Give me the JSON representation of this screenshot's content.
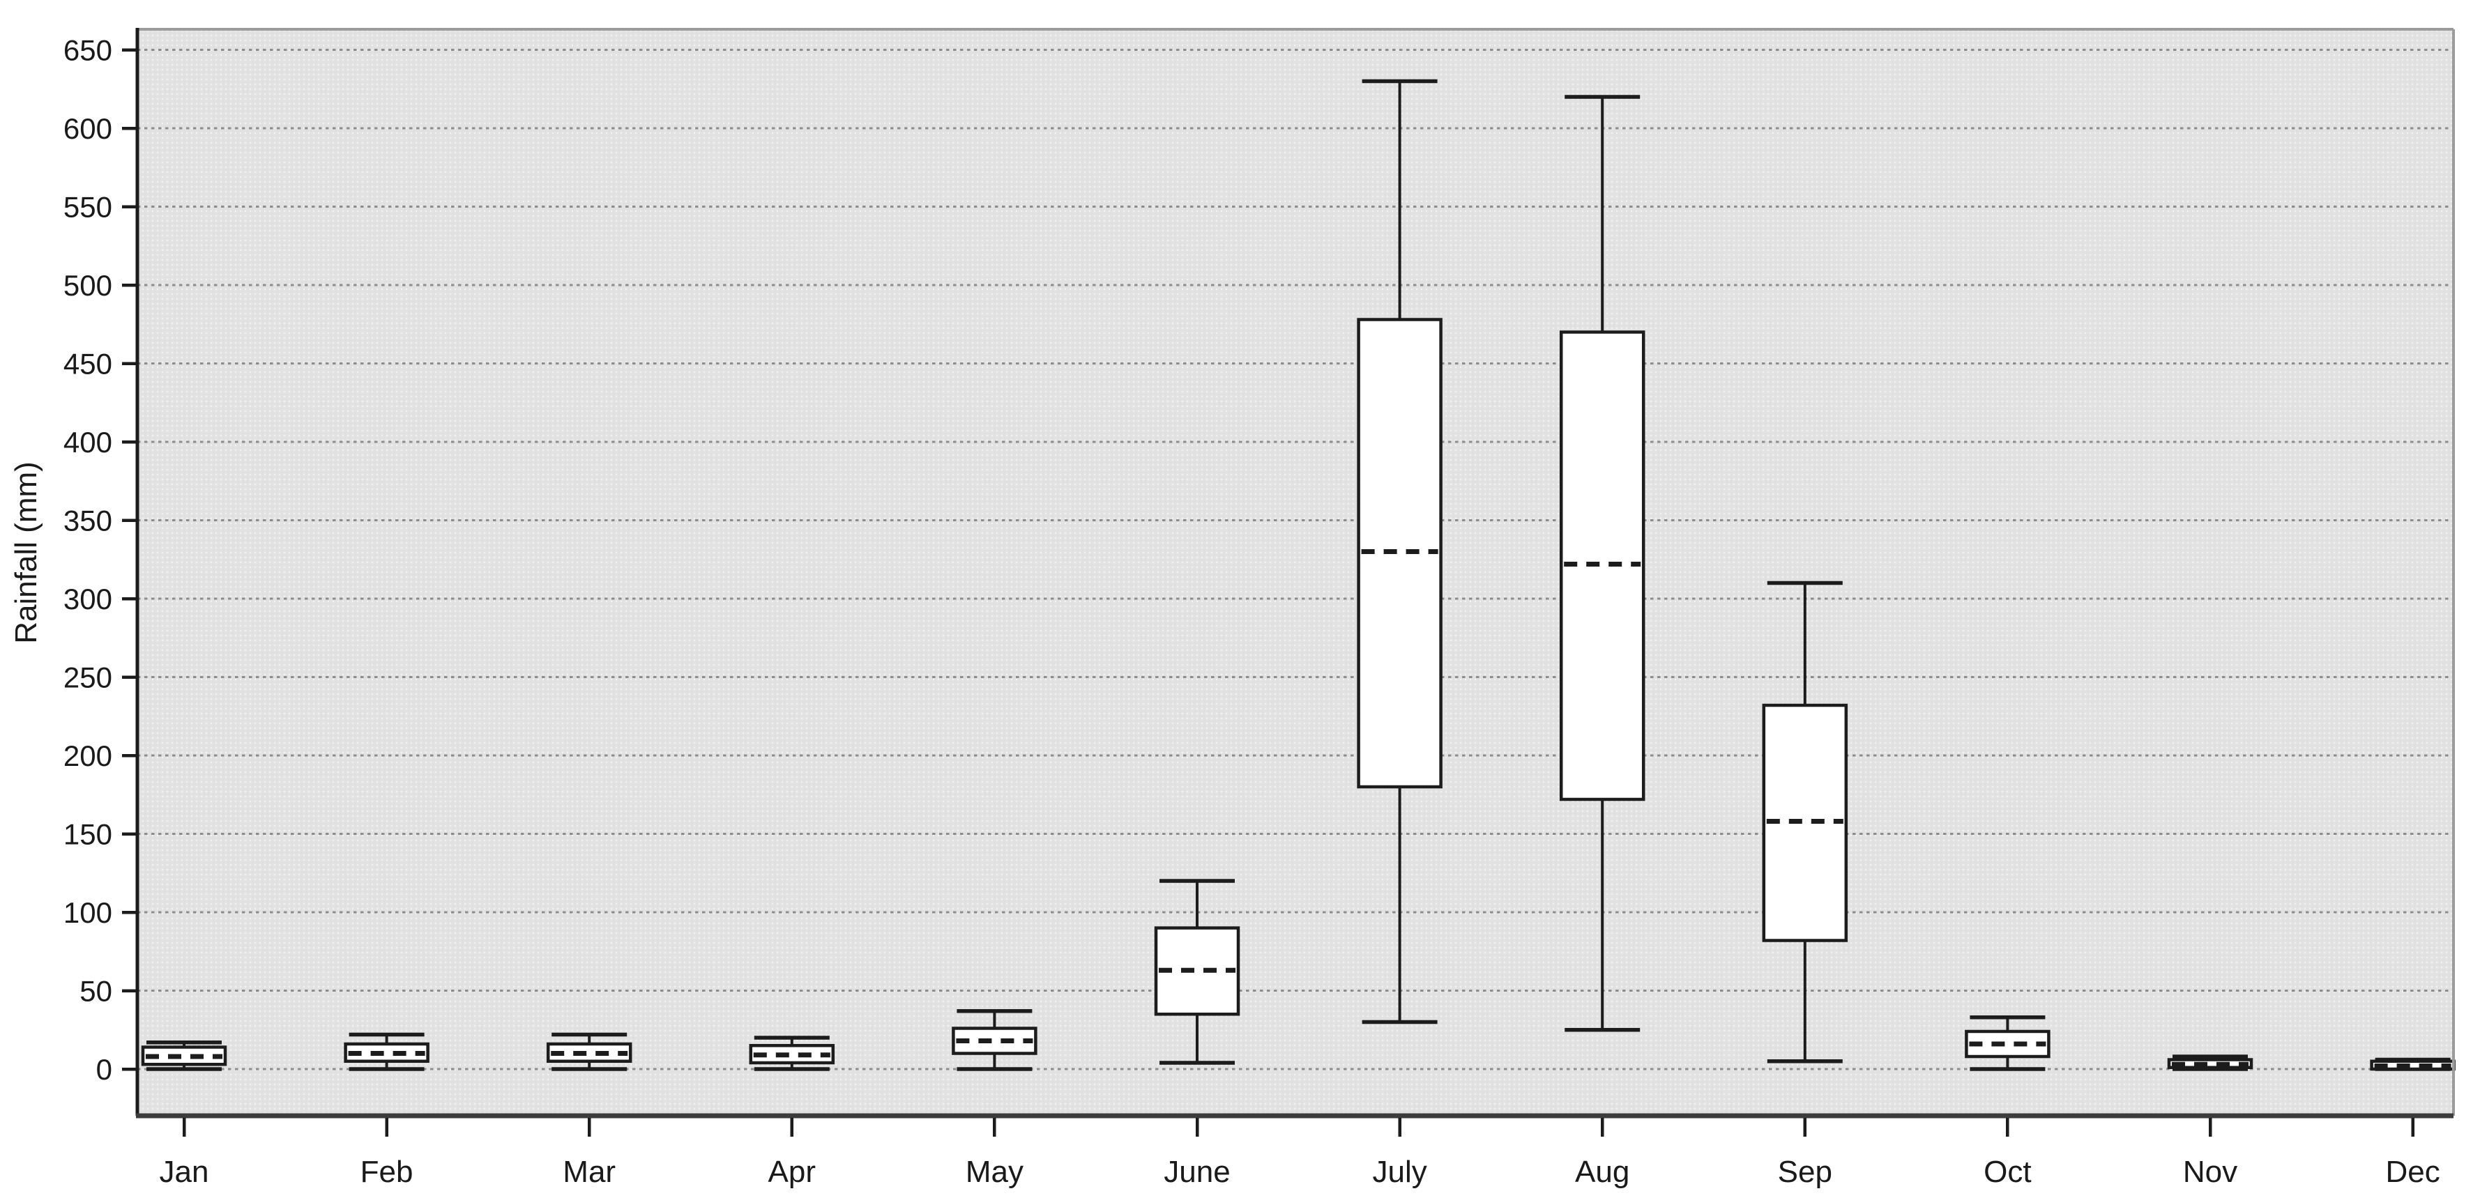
{
  "page": {
    "background": "#ffffff"
  },
  "chart_data": {
    "type": "boxplot",
    "title": "",
    "xlabel": "",
    "ylabel": "Rainfall (mm)",
    "categories": [
      "Jan",
      "Feb",
      "Mar",
      "Apr",
      "May",
      "June",
      "July",
      "Aug",
      "Sep",
      "Oct",
      "Nov",
      "Dec"
    ],
    "y_ticks": [
      0,
      50,
      100,
      150,
      200,
      250,
      300,
      350,
      400,
      450,
      500,
      550,
      600,
      650
    ],
    "ylim": [
      0,
      650
    ],
    "grid": "horizontal-dotted",
    "legend": "none",
    "median_style": "dashed",
    "box_fill_style": "white",
    "series": [
      {
        "month": "Jan",
        "min": 0,
        "q1": 3,
        "median": 8,
        "q3": 14,
        "max": 17
      },
      {
        "month": "Feb",
        "min": 0,
        "q1": 5,
        "median": 10,
        "q3": 16,
        "max": 22
      },
      {
        "month": "Mar",
        "min": 0,
        "q1": 5,
        "median": 10,
        "q3": 16,
        "max": 22
      },
      {
        "month": "Apr",
        "min": 0,
        "q1": 4,
        "median": 9,
        "q3": 15,
        "max": 20
      },
      {
        "month": "May",
        "min": 0,
        "q1": 10,
        "median": 18,
        "q3": 26,
        "max": 37
      },
      {
        "month": "June",
        "min": 4,
        "q1": 35,
        "median": 63,
        "q3": 90,
        "max": 120
      },
      {
        "month": "July",
        "min": 30,
        "q1": 180,
        "median": 330,
        "q3": 478,
        "max": 630
      },
      {
        "month": "Aug",
        "min": 25,
        "q1": 172,
        "median": 322,
        "q3": 470,
        "max": 620
      },
      {
        "month": "Sep",
        "min": 5,
        "q1": 82,
        "median": 158,
        "q3": 232,
        "max": 310
      },
      {
        "month": "Oct",
        "min": 0,
        "q1": 8,
        "median": 16,
        "q3": 24,
        "max": 33
      },
      {
        "month": "Nov",
        "min": 0,
        "q1": 1,
        "median": 3,
        "q3": 6,
        "max": 8
      },
      {
        "month": "Dec",
        "min": 0,
        "q1": 0,
        "median": 2,
        "q3": 5,
        "max": 6
      }
    ],
    "colors": {
      "line": "#1c1c1c",
      "box_fill": "#ffffff",
      "grid": "#8d8d8d",
      "plot_bg": "#e2e2e2",
      "plot_dot_light": "#f3f3f3",
      "plot_dot_dark": "#d9d9d9",
      "frame": "#9b9b9b",
      "axis": "#1c1c1c",
      "axis_bottom": "#3c3c3c",
      "text": "#1a1a1a",
      "page_bg": "#ffffff"
    }
  }
}
